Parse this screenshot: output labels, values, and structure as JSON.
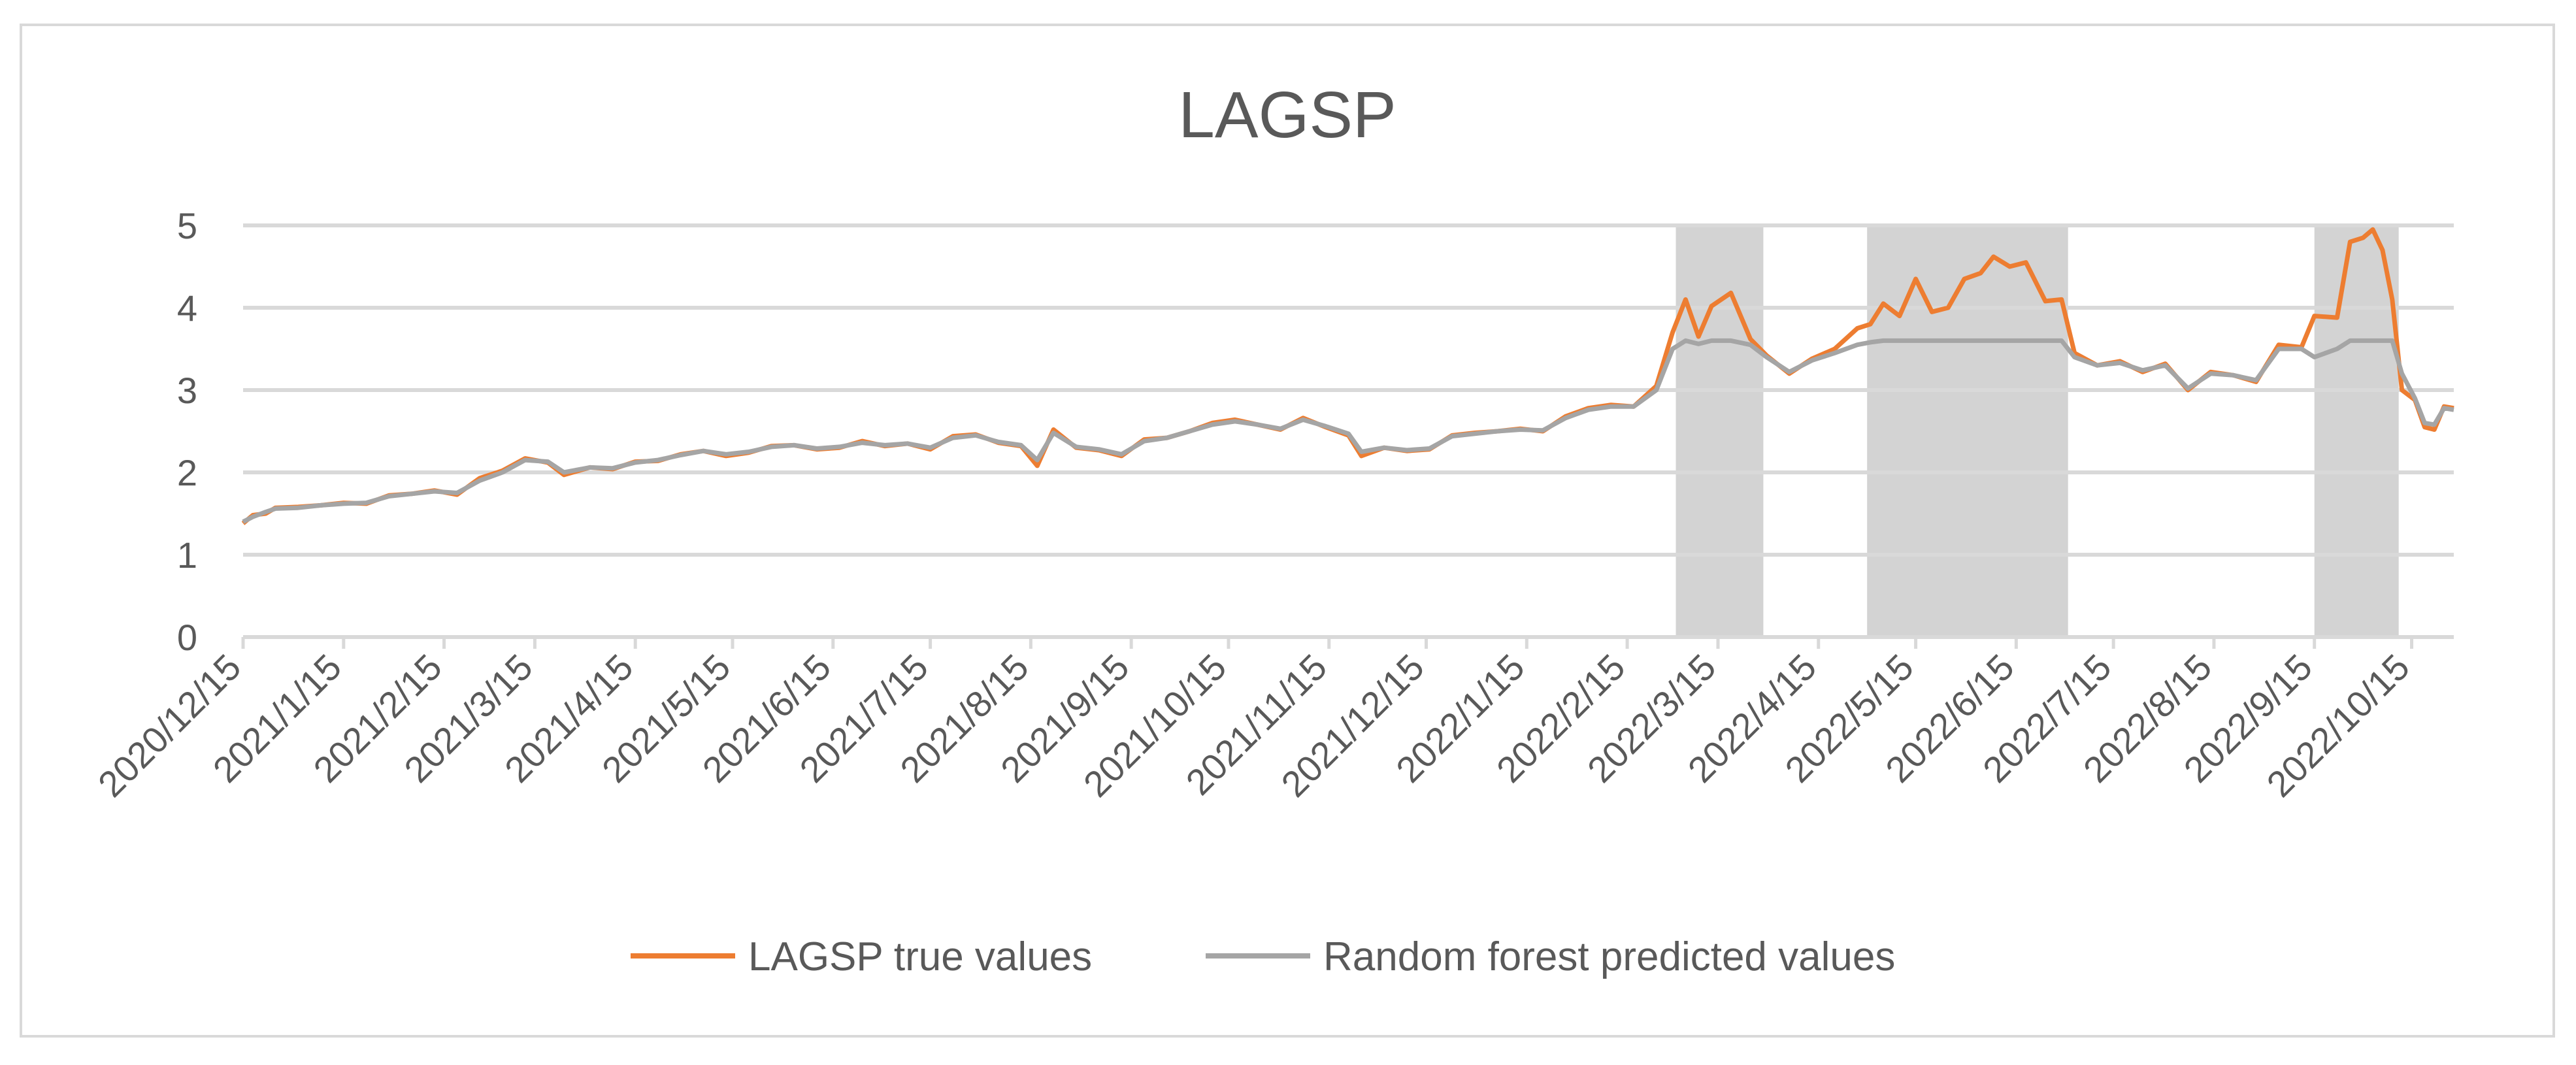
{
  "chart_data": {
    "type": "line",
    "title": "LAGSP",
    "xlabel": "",
    "ylabel": "",
    "ylim": [
      0,
      5
    ],
    "yticks": [
      0,
      1,
      2,
      3,
      4,
      5
    ],
    "grid": true,
    "legend_position": "bottom",
    "x_tick_labels": [
      "2020/12/15",
      "2021/1/15",
      "2021/2/15",
      "2021/3/15",
      "2021/4/15",
      "2021/5/15",
      "2021/6/15",
      "2021/7/15",
      "2021/8/15",
      "2021/9/15",
      "2021/10/15",
      "2021/11/15",
      "2021/12/15",
      "2022/1/15",
      "2022/2/15",
      "2022/3/15",
      "2022/4/15",
      "2022/5/15",
      "2022/6/15",
      "2022/7/15",
      "2022/8/15",
      "2022/9/15",
      "2022/10/15"
    ],
    "x_range": [
      "2020-12-15",
      "2022-10-28"
    ],
    "shaded_regions": [
      {
        "start": "2022-03-02",
        "end": "2022-03-29"
      },
      {
        "start": "2022-04-30",
        "end": "2022-07-01"
      },
      {
        "start": "2022-09-15",
        "end": "2022-10-11"
      }
    ],
    "shade_color": "#d3d3d3",
    "series": [
      {
        "name": "LAGSP true values",
        "color": "#ed7d31",
        "points": [
          [
            "2020-12-15",
            1.38
          ],
          [
            "2020-12-18",
            1.48
          ],
          [
            "2020-12-22",
            1.5
          ],
          [
            "2020-12-25",
            1.57
          ],
          [
            "2021-01-01",
            1.58
          ],
          [
            "2021-01-08",
            1.6
          ],
          [
            "2021-01-15",
            1.63
          ],
          [
            "2021-01-22",
            1.62
          ],
          [
            "2021-01-29",
            1.72
          ],
          [
            "2021-02-05",
            1.74
          ],
          [
            "2021-02-12",
            1.78
          ],
          [
            "2021-02-19",
            1.73
          ],
          [
            "2021-02-26",
            1.93
          ],
          [
            "2021-03-05",
            2.02
          ],
          [
            "2021-03-12",
            2.17
          ],
          [
            "2021-03-19",
            2.12
          ],
          [
            "2021-03-24",
            1.97
          ],
          [
            "2021-04-01",
            2.06
          ],
          [
            "2021-04-08",
            2.04
          ],
          [
            "2021-04-15",
            2.13
          ],
          [
            "2021-04-22",
            2.14
          ],
          [
            "2021-04-29",
            2.22
          ],
          [
            "2021-05-06",
            2.26
          ],
          [
            "2021-05-13",
            2.2
          ],
          [
            "2021-05-20",
            2.24
          ],
          [
            "2021-05-27",
            2.32
          ],
          [
            "2021-06-03",
            2.33
          ],
          [
            "2021-06-10",
            2.28
          ],
          [
            "2021-06-17",
            2.3
          ],
          [
            "2021-06-24",
            2.38
          ],
          [
            "2021-07-01",
            2.32
          ],
          [
            "2021-07-08",
            2.35
          ],
          [
            "2021-07-15",
            2.28
          ],
          [
            "2021-07-22",
            2.44
          ],
          [
            "2021-07-29",
            2.46
          ],
          [
            "2021-08-05",
            2.36
          ],
          [
            "2021-08-12",
            2.32
          ],
          [
            "2021-08-17",
            2.08
          ],
          [
            "2021-08-22",
            2.52
          ],
          [
            "2021-08-29",
            2.3
          ],
          [
            "2021-09-05",
            2.27
          ],
          [
            "2021-09-12",
            2.2
          ],
          [
            "2021-09-19",
            2.4
          ],
          [
            "2021-09-26",
            2.42
          ],
          [
            "2021-10-03",
            2.5
          ],
          [
            "2021-10-10",
            2.6
          ],
          [
            "2021-10-17",
            2.64
          ],
          [
            "2021-10-24",
            2.58
          ],
          [
            "2021-10-31",
            2.52
          ],
          [
            "2021-11-07",
            2.66
          ],
          [
            "2021-11-14",
            2.55
          ],
          [
            "2021-11-21",
            2.45
          ],
          [
            "2021-11-25",
            2.2
          ],
          [
            "2021-12-02",
            2.3
          ],
          [
            "2021-12-09",
            2.26
          ],
          [
            "2021-12-16",
            2.28
          ],
          [
            "2021-12-23",
            2.45
          ],
          [
            "2021-12-30",
            2.48
          ],
          [
            "2022-01-06",
            2.5
          ],
          [
            "2022-01-13",
            2.53
          ],
          [
            "2022-01-20",
            2.5
          ],
          [
            "2022-01-27",
            2.68
          ],
          [
            "2022-02-03",
            2.78
          ],
          [
            "2022-02-10",
            2.82
          ],
          [
            "2022-02-17",
            2.8
          ],
          [
            "2022-02-24",
            3.05
          ],
          [
            "2022-03-01",
            3.7
          ],
          [
            "2022-03-05",
            4.1
          ],
          [
            "2022-03-09",
            3.65
          ],
          [
            "2022-03-13",
            4.02
          ],
          [
            "2022-03-19",
            4.18
          ],
          [
            "2022-03-25",
            3.62
          ],
          [
            "2022-03-30",
            3.42
          ],
          [
            "2022-04-06",
            3.2
          ],
          [
            "2022-04-13",
            3.38
          ],
          [
            "2022-04-20",
            3.5
          ],
          [
            "2022-04-27",
            3.75
          ],
          [
            "2022-05-01",
            3.8
          ],
          [
            "2022-05-05",
            4.05
          ],
          [
            "2022-05-10",
            3.9
          ],
          [
            "2022-05-15",
            4.35
          ],
          [
            "2022-05-20",
            3.95
          ],
          [
            "2022-05-25",
            4.0
          ],
          [
            "2022-05-30",
            4.35
          ],
          [
            "2022-06-04",
            4.42
          ],
          [
            "2022-06-08",
            4.62
          ],
          [
            "2022-06-13",
            4.5
          ],
          [
            "2022-06-18",
            4.55
          ],
          [
            "2022-06-24",
            4.08
          ],
          [
            "2022-06-29",
            4.1
          ],
          [
            "2022-07-03",
            3.45
          ],
          [
            "2022-07-10",
            3.3
          ],
          [
            "2022-07-17",
            3.35
          ],
          [
            "2022-07-24",
            3.22
          ],
          [
            "2022-07-31",
            3.32
          ],
          [
            "2022-08-07",
            3.0
          ],
          [
            "2022-08-14",
            3.22
          ],
          [
            "2022-08-21",
            3.18
          ],
          [
            "2022-08-28",
            3.1
          ],
          [
            "2022-09-04",
            3.55
          ],
          [
            "2022-09-11",
            3.52
          ],
          [
            "2022-09-15",
            3.9
          ],
          [
            "2022-09-22",
            3.88
          ],
          [
            "2022-09-26",
            4.8
          ],
          [
            "2022-09-30",
            4.85
          ],
          [
            "2022-10-03",
            4.95
          ],
          [
            "2022-10-06",
            4.7
          ],
          [
            "2022-10-09",
            4.1
          ],
          [
            "2022-10-12",
            3.0
          ],
          [
            "2022-10-16",
            2.88
          ],
          [
            "2022-10-19",
            2.55
          ],
          [
            "2022-10-22",
            2.52
          ],
          [
            "2022-10-25",
            2.8
          ],
          [
            "2022-10-28",
            2.78
          ]
        ]
      },
      {
        "name": "Random forest predicted values",
        "color": "#a5a5a5",
        "points": [
          [
            "2020-12-15",
            1.4
          ],
          [
            "2020-12-18",
            1.46
          ],
          [
            "2020-12-22",
            1.52
          ],
          [
            "2020-12-25",
            1.56
          ],
          [
            "2021-01-01",
            1.57
          ],
          [
            "2021-01-08",
            1.6
          ],
          [
            "2021-01-15",
            1.62
          ],
          [
            "2021-01-22",
            1.63
          ],
          [
            "2021-01-29",
            1.71
          ],
          [
            "2021-02-05",
            1.74
          ],
          [
            "2021-02-12",
            1.77
          ],
          [
            "2021-02-19",
            1.75
          ],
          [
            "2021-02-26",
            1.9
          ],
          [
            "2021-03-05",
            2.0
          ],
          [
            "2021-03-12",
            2.15
          ],
          [
            "2021-03-19",
            2.13
          ],
          [
            "2021-03-24",
            2.0
          ],
          [
            "2021-04-01",
            2.06
          ],
          [
            "2021-04-08",
            2.05
          ],
          [
            "2021-04-15",
            2.12
          ],
          [
            "2021-04-22",
            2.15
          ],
          [
            "2021-04-29",
            2.21
          ],
          [
            "2021-05-06",
            2.26
          ],
          [
            "2021-05-13",
            2.22
          ],
          [
            "2021-05-20",
            2.25
          ],
          [
            "2021-05-27",
            2.31
          ],
          [
            "2021-06-03",
            2.33
          ],
          [
            "2021-06-10",
            2.29
          ],
          [
            "2021-06-17",
            2.31
          ],
          [
            "2021-06-24",
            2.36
          ],
          [
            "2021-07-01",
            2.33
          ],
          [
            "2021-07-08",
            2.35
          ],
          [
            "2021-07-15",
            2.3
          ],
          [
            "2021-07-22",
            2.42
          ],
          [
            "2021-07-29",
            2.45
          ],
          [
            "2021-08-05",
            2.37
          ],
          [
            "2021-08-12",
            2.33
          ],
          [
            "2021-08-17",
            2.15
          ],
          [
            "2021-08-22",
            2.48
          ],
          [
            "2021-08-29",
            2.31
          ],
          [
            "2021-09-05",
            2.28
          ],
          [
            "2021-09-12",
            2.22
          ],
          [
            "2021-09-19",
            2.38
          ],
          [
            "2021-09-26",
            2.42
          ],
          [
            "2021-10-03",
            2.5
          ],
          [
            "2021-10-10",
            2.58
          ],
          [
            "2021-10-17",
            2.62
          ],
          [
            "2021-10-24",
            2.58
          ],
          [
            "2021-10-31",
            2.53
          ],
          [
            "2021-11-07",
            2.64
          ],
          [
            "2021-11-14",
            2.56
          ],
          [
            "2021-11-21",
            2.47
          ],
          [
            "2021-11-25",
            2.25
          ],
          [
            "2021-12-02",
            2.3
          ],
          [
            "2021-12-09",
            2.27
          ],
          [
            "2021-12-16",
            2.29
          ],
          [
            "2021-12-23",
            2.44
          ],
          [
            "2021-12-30",
            2.47
          ],
          [
            "2022-01-06",
            2.5
          ],
          [
            "2022-01-13",
            2.52
          ],
          [
            "2022-01-20",
            2.51
          ],
          [
            "2022-01-27",
            2.66
          ],
          [
            "2022-02-03",
            2.76
          ],
          [
            "2022-02-10",
            2.8
          ],
          [
            "2022-02-17",
            2.8
          ],
          [
            "2022-02-24",
            3.0
          ],
          [
            "2022-03-01",
            3.5
          ],
          [
            "2022-03-05",
            3.6
          ],
          [
            "2022-03-09",
            3.56
          ],
          [
            "2022-03-13",
            3.6
          ],
          [
            "2022-03-19",
            3.6
          ],
          [
            "2022-03-25",
            3.55
          ],
          [
            "2022-03-30",
            3.4
          ],
          [
            "2022-04-06",
            3.22
          ],
          [
            "2022-04-13",
            3.36
          ],
          [
            "2022-04-20",
            3.45
          ],
          [
            "2022-04-27",
            3.55
          ],
          [
            "2022-05-01",
            3.58
          ],
          [
            "2022-05-05",
            3.6
          ],
          [
            "2022-05-10",
            3.6
          ],
          [
            "2022-05-15",
            3.6
          ],
          [
            "2022-05-20",
            3.6
          ],
          [
            "2022-05-25",
            3.6
          ],
          [
            "2022-05-30",
            3.6
          ],
          [
            "2022-06-04",
            3.6
          ],
          [
            "2022-06-08",
            3.6
          ],
          [
            "2022-06-13",
            3.6
          ],
          [
            "2022-06-18",
            3.6
          ],
          [
            "2022-06-24",
            3.6
          ],
          [
            "2022-06-29",
            3.6
          ],
          [
            "2022-07-03",
            3.4
          ],
          [
            "2022-07-10",
            3.3
          ],
          [
            "2022-07-17",
            3.33
          ],
          [
            "2022-07-24",
            3.24
          ],
          [
            "2022-07-31",
            3.3
          ],
          [
            "2022-08-07",
            3.02
          ],
          [
            "2022-08-14",
            3.2
          ],
          [
            "2022-08-21",
            3.18
          ],
          [
            "2022-08-28",
            3.12
          ],
          [
            "2022-09-04",
            3.5
          ],
          [
            "2022-09-11",
            3.5
          ],
          [
            "2022-09-15",
            3.4
          ],
          [
            "2022-09-22",
            3.5
          ],
          [
            "2022-09-26",
            3.6
          ],
          [
            "2022-09-30",
            3.6
          ],
          [
            "2022-10-03",
            3.6
          ],
          [
            "2022-10-06",
            3.6
          ],
          [
            "2022-10-09",
            3.6
          ],
          [
            "2022-10-12",
            3.2
          ],
          [
            "2022-10-16",
            2.9
          ],
          [
            "2022-10-19",
            2.6
          ],
          [
            "2022-10-22",
            2.58
          ],
          [
            "2022-10-25",
            2.78
          ],
          [
            "2022-10-28",
            2.76
          ]
        ]
      }
    ]
  }
}
